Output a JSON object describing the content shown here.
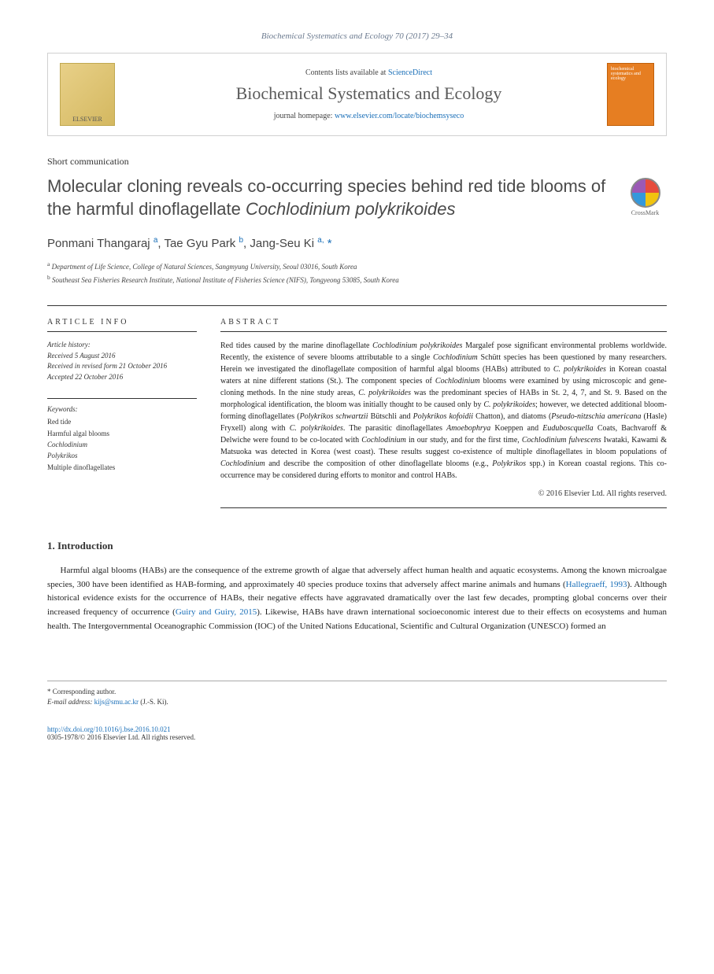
{
  "journal_ref": "Biochemical Systematics and Ecology 70 (2017) 29–34",
  "banner": {
    "contents_prefix": "Contents lists available at ",
    "contents_link": "ScienceDirect",
    "journal_name": "Biochemical Systematics and Ecology",
    "homepage_prefix": "journal homepage: ",
    "homepage_url": "www.elsevier.com/locate/biochemsyseco",
    "publisher": "ELSEVIER",
    "cover_text": "biochemical systematics and ecology"
  },
  "article_type": "Short communication",
  "title_html": "Molecular cloning reveals co-occurring species behind red tide blooms of the harmful dinoflagellate <em>Cochlodinium polykrikoides</em>",
  "crossmark_label": "CrossMark",
  "authors_html": "Ponmani Thangaraj <sup>a</sup>, Tae Gyu Park <sup>b</sup>, Jang-Seu Ki <sup>a,</sup> <span class='ast'>*</span>",
  "affiliations": [
    "<sup>a</sup> Department of Life Science, College of Natural Sciences, Sangmyung University, Seoul 03016, South Korea",
    "<sup>b</sup> Southeast Sea Fisheries Research Institute, National Institute of Fisheries Science (NIFS), Tongyeong 53085, South Korea"
  ],
  "article_info": {
    "heading": "ARTICLE INFO",
    "history_label": "Article history:",
    "received": "Received 5 August 2016",
    "revised": "Received in revised form 21 October 2016",
    "accepted": "Accepted 22 October 2016",
    "keywords_label": "Keywords:",
    "keywords": [
      "Red tide",
      "Harmful algal blooms",
      "<em>Cochlodinium</em>",
      "<em>Polykrikos</em>",
      "Multiple dinoflagellates"
    ]
  },
  "abstract": {
    "heading": "ABSTRACT",
    "text_html": "Red tides caused by the marine dinoflagellate <em>Cochlodinium polykrikoides</em> Margalef pose significant environmental problems worldwide. Recently, the existence of severe blooms attributable to a single <em>Cochlodinium</em> Schütt species has been questioned by many researchers. Herein we investigated the dinoflagellate composition of harmful algal blooms (HABs) attributed to <em>C. polykrikoides</em> in Korean coastal waters at nine different stations (St.). The component species of <em>Cochlodinium</em> blooms were examined by using microscopic and gene-cloning methods. In the nine study areas, <em>C. polykrikoides</em> was the predominant species of HABs in St. 2, 4, 7, and St. 9. Based on the morphological identification, the bloom was initially thought to be caused only by <em>C. polykrikoides</em>; however, we detected additional bloom-forming dinoflagellates (<em>Polykrikos schwartzii</em> Bütschli and <em>Polykrikos kofoidii</em> Chatton), and diatoms (<em>Pseudo-nitzschia americana</em> (Hasle) Fryxell) along with <em>C. polykrikoides</em>. The parasitic dinoflagellates <em>Amoebophrya</em> Koeppen and <em>Euduboscquella</em> Coats, Bachvaroff & Delwiche were found to be co-located with <em>Cochlodinium</em> in our study, and for the first time, <em>Cochlodinium fulvescens</em> Iwataki, Kawami & Matsuoka was detected in Korea (west coast). These results suggest co-existence of multiple dinoflagellates in bloom populations of <em>Cochlodinium</em> and describe the composition of other dinoflagellate blooms (e.g., <em>Polykrikos</em> spp.) in Korean coastal regions. This co-occurrence may be considered during efforts to monitor and control HABs.",
    "copyright": "© 2016 Elsevier Ltd. All rights reserved."
  },
  "intro": {
    "heading": "1. Introduction",
    "para_html": "Harmful algal blooms (HABs) are the consequence of the extreme growth of algae that adversely affect human health and aquatic ecosystems. Among the known microalgae species, 300 have been identified as HAB-forming, and approximately 40 species produce toxins that adversely affect marine animals and humans (<a href='#'>Hallegraeff, 1993</a>). Although historical evidence exists for the occurrence of HABs, their negative effects have aggravated dramatically over the last few decades, prompting global concerns over their increased frequency of occurrence (<a href='#'>Guiry and Guiry, 2015</a>). Likewise, HABs have drawn international socioeconomic interest due to their effects on ecosystems and human health. The Intergovernmental Oceanographic Commission (IOC) of the United Nations Educational, Scientific and Cultural Organization (UNESCO) formed an"
  },
  "footer": {
    "corresponding": "* Corresponding author.",
    "email_label": "E-mail address: ",
    "email": "kijs@smu.ac.kr",
    "email_suffix": " (J.-S. Ki).",
    "doi": "http://dx.doi.org/10.1016/j.bse.2016.10.021",
    "issn_line": "0305-1978/© 2016 Elsevier Ltd. All rights reserved."
  }
}
